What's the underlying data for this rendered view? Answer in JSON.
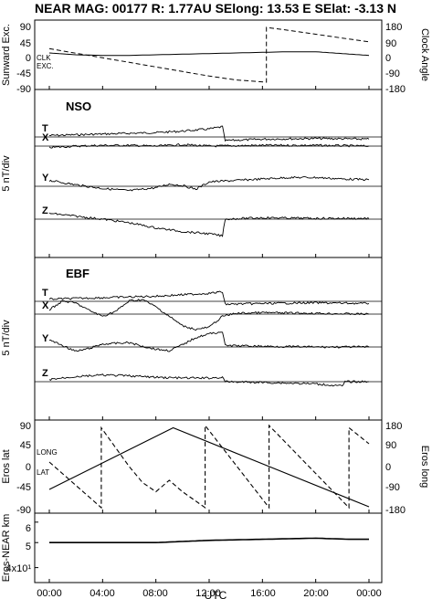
{
  "header": {
    "title": "NEAR MAG: 00177  R: 1.77AU  SElong:   13.53 E  SElat:   -3.13 N"
  },
  "x_axis": {
    "label": "UTC",
    "ticks": [
      "00:00",
      "04:00",
      "08:00",
      "12:00",
      "16:00",
      "20:00",
      "00:00"
    ]
  },
  "chart_data": [
    {
      "type": "line",
      "panel": "sunward-clock",
      "ylabel_left": "Sunward Exc.",
      "ylabel_right": "Clock Angle",
      "yticks_left": [
        "90",
        "45",
        "0",
        "-45",
        "-90"
      ],
      "yticks_right": [
        "180",
        "90",
        "0",
        "-90",
        "-180"
      ],
      "ylim_left": [
        -90,
        90
      ],
      "ylim_right": [
        -180,
        180
      ],
      "annotations": [
        "CLK",
        "EXC."
      ],
      "series": [
        {
          "name": "EXC.",
          "axis": "left",
          "style": "solid",
          "x": [
            0,
            2,
            4,
            6,
            8,
            10,
            12,
            14,
            16,
            18,
            20,
            22,
            24
          ],
          "y": [
            6,
            0,
            -2,
            -2,
            0,
            2,
            4,
            6,
            8,
            10,
            10,
            4,
            -2
          ]
        },
        {
          "name": "CLK",
          "axis": "right",
          "style": "dashed",
          "x": [
            0,
            2,
            4,
            6,
            8,
            10,
            12,
            14,
            16.3,
            16.3,
            18,
            20,
            22,
            24
          ],
          "y": [
            40,
            10,
            -20,
            -50,
            -80,
            -110,
            -140,
            -165,
            -180,
            180,
            160,
            135,
            110,
            85
          ]
        }
      ]
    },
    {
      "type": "line",
      "panel": "NSO",
      "ylabel": "5 nT/div",
      "panel_label": "NSO",
      "series": [
        {
          "name": "T",
          "x": [
            0,
            2,
            4,
            6,
            8,
            10,
            12,
            13,
            13.2,
            16,
            20,
            24
          ],
          "y": [
            0.2,
            0.3,
            0.4,
            0.5,
            0.6,
            0.8,
            1.1,
            1.4,
            -0.5,
            -0.3,
            -0.2,
            -0.3
          ]
        },
        {
          "name": "X",
          "x": [
            0,
            2,
            4,
            6,
            8,
            10,
            12,
            16,
            20,
            24
          ],
          "y": [
            -0.2,
            0.0,
            0.1,
            0.1,
            0.0,
            0.2,
            0.0,
            0.1,
            0.1,
            0.0
          ]
        },
        {
          "name": "Y",
          "x": [
            0,
            2,
            4,
            6,
            8,
            9,
            10,
            11,
            12,
            14,
            16,
            18,
            20,
            22,
            24
          ],
          "y": [
            0.8,
            0.2,
            -0.3,
            -0.6,
            -0.2,
            0.3,
            0.1,
            -0.4,
            0.6,
            0.8,
            1.0,
            1.2,
            1.2,
            1.0,
            0.9
          ]
        },
        {
          "name": "Z",
          "x": [
            0,
            2,
            4,
            6,
            8,
            10,
            12,
            13,
            13.2,
            16,
            20,
            24
          ],
          "y": [
            0.8,
            0.4,
            0.0,
            -0.5,
            -1.2,
            -1.7,
            -2.0,
            -2.3,
            0.0,
            0.2,
            0.1,
            0.1
          ]
        }
      ]
    },
    {
      "type": "line",
      "panel": "EBF",
      "ylabel": "5 nT/div",
      "panel_label": "EBF",
      "series": [
        {
          "name": "T",
          "x": [
            0,
            2,
            4,
            6,
            8,
            10,
            12,
            13,
            13.2,
            16,
            20,
            24
          ],
          "y": [
            0.3,
            0.4,
            0.5,
            0.6,
            0.7,
            0.9,
            1.1,
            1.3,
            -0.4,
            -0.3,
            -0.2,
            -0.3
          ]
        },
        {
          "name": "X",
          "x": [
            0,
            1,
            2,
            3,
            4,
            5,
            6,
            7,
            8,
            9,
            10,
            11,
            12,
            13,
            14,
            16,
            20,
            24
          ],
          "y": [
            0.6,
            1.8,
            1.5,
            0.5,
            -0.3,
            0.4,
            1.8,
            2.0,
            1.0,
            -0.3,
            -1.6,
            -2.1,
            -1.8,
            -0.3,
            0.1,
            0.2,
            0.1,
            0.0
          ]
        },
        {
          "name": "Y",
          "x": [
            0,
            1,
            2,
            3,
            4,
            6,
            7,
            8,
            9,
            10,
            11,
            12,
            13,
            13.2,
            16,
            20,
            24
          ],
          "y": [
            1.0,
            0.2,
            -0.6,
            -0.2,
            0.4,
            0.6,
            0.1,
            -0.3,
            -0.5,
            0.3,
            1.3,
            1.8,
            2.1,
            0.2,
            0.1,
            0.0,
            0.0
          ]
        },
        {
          "name": "Z",
          "x": [
            0,
            2,
            4,
            6,
            8,
            10,
            12,
            13,
            13.2,
            16,
            20,
            22,
            22.2,
            24
          ],
          "y": [
            0.3,
            0.7,
            0.9,
            0.8,
            0.6,
            0.5,
            0.5,
            0.6,
            0.0,
            -0.1,
            -0.3,
            -0.6,
            0.0,
            0.0
          ]
        }
      ]
    },
    {
      "type": "line",
      "panel": "eros-lat-long",
      "ylabel_left": "Eros lat",
      "ylabel_right": "Eros long",
      "yticks_left": [
        "90",
        "45",
        "0",
        "-45",
        "-90"
      ],
      "yticks_right": [
        "180",
        "90",
        "0",
        "-90",
        "-180"
      ],
      "ylim_left": [
        -90,
        90
      ],
      "ylim_right": [
        -180,
        180
      ],
      "annotations": [
        "LONG",
        "LAT"
      ],
      "series": [
        {
          "name": "LAT",
          "axis": "left",
          "style": "solid",
          "x": [
            0,
            9.3,
            24
          ],
          "y": [
            -50,
            85,
            -88
          ]
        },
        {
          "name": "LONG",
          "axis": "right",
          "style": "dashed",
          "x": [
            0,
            3.9,
            3.9,
            6,
            7,
            8,
            9,
            10,
            11.7,
            11.7,
            16.5,
            16.5,
            22.5,
            22.5,
            24
          ],
          "y": [
            20,
            -180,
            170,
            0,
            -70,
            -110,
            -60,
            -110,
            -180,
            180,
            -180,
            180,
            -180,
            170,
            100
          ]
        }
      ]
    },
    {
      "type": "line",
      "panel": "eros-near-distance",
      "ylabel": "Eros-NEAR km",
      "yscale": "log",
      "yticks": [
        "6",
        "5",
        "4x10¹"
      ],
      "series": [
        {
          "name": "distance",
          "x": [
            0,
            4,
            8,
            12,
            16,
            20,
            22.5,
            24
          ],
          "y": [
            50,
            50,
            50,
            51,
            51.5,
            52,
            51.5,
            51.5
          ]
        }
      ]
    }
  ]
}
